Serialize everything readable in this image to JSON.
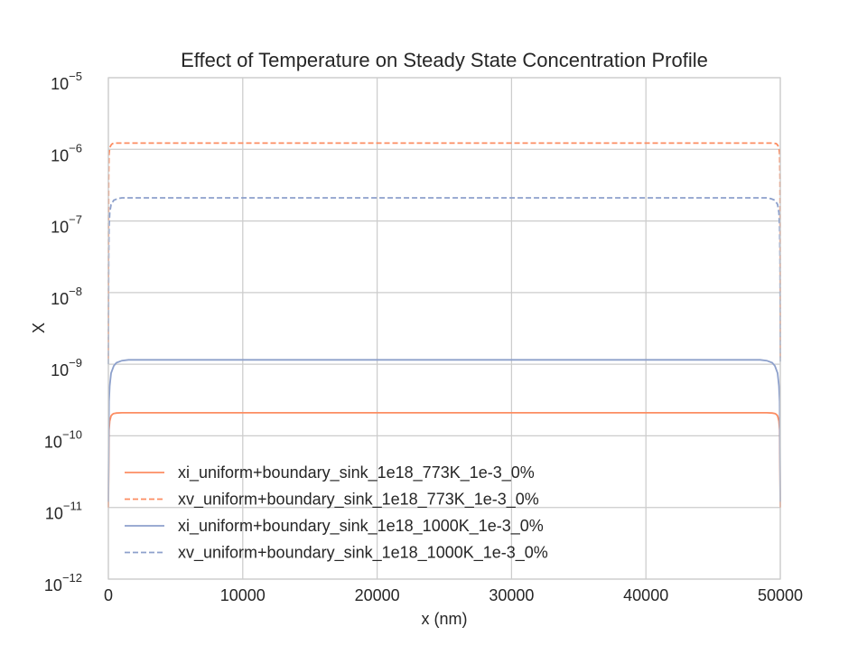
{
  "chart_data": {
    "type": "line",
    "title": "Effect of Temperature on Steady State Concentration Profile",
    "xlabel": "x (nm)",
    "ylabel": "X",
    "xlim": [
      0,
      50000
    ],
    "ylim": [
      1e-12,
      1e-05
    ],
    "yscale": "log",
    "grid": true,
    "legend_position": "lower-left",
    "x_ticks": [
      "0",
      "10000",
      "20000",
      "30000",
      "40000",
      "50000"
    ],
    "y_ticks": [
      {
        "base": "10",
        "exp": "−12"
      },
      {
        "base": "10",
        "exp": "−11"
      },
      {
        "base": "10",
        "exp": "−10"
      },
      {
        "base": "10",
        "exp": "−9"
      },
      {
        "base": "10",
        "exp": "−8"
      },
      {
        "base": "10",
        "exp": "−7"
      },
      {
        "base": "10",
        "exp": "−6"
      },
      {
        "base": "10",
        "exp": "−5"
      }
    ],
    "series": [
      {
        "name": "xi_uniform+boundary_sink_1e18_773K_1e-3_0%",
        "color": "#fc8d62",
        "dash": "solid",
        "x": [
          0,
          50,
          100,
          200,
          300,
          400,
          600,
          1000,
          49000,
          49400,
          49600,
          49700,
          49800,
          49900,
          49950,
          50000
        ],
        "y": [
          1e-11,
          1.2e-10,
          1.6e-10,
          1.9e-10,
          2e-10,
          2.05e-10,
          2.08e-10,
          2.1e-10,
          2.1e-10,
          2.08e-10,
          2.05e-10,
          2e-10,
          1.9e-10,
          1.6e-10,
          1.2e-10,
          1e-11
        ]
      },
      {
        "name": "xv_uniform+boundary_sink_1e18_773K_1e-3_0%",
        "color": "#fc8d62",
        "dash": "dashed",
        "x": [
          0,
          20,
          50,
          100,
          200,
          300,
          500,
          49500,
          49700,
          49800,
          49900,
          49950,
          49980,
          50000
        ],
        "y": [
          1.2e-09,
          4e-07,
          8.5e-07,
          1.05e-06,
          1.15e-06,
          1.2e-06,
          1.22e-06,
          1.22e-06,
          1.2e-06,
          1.15e-06,
          1.05e-06,
          8.5e-07,
          4e-07,
          1.2e-09
        ]
      },
      {
        "name": "xi_uniform+boundary_sink_1e18_1000K_1e-3_0%",
        "color": "#8da0cb",
        "dash": "solid",
        "x": [
          0,
          50,
          100,
          200,
          400,
          600,
          1000,
          1500,
          48500,
          49000,
          49400,
          49600,
          49800,
          49900,
          49950,
          50000
        ],
        "y": [
          1.2e-11,
          3e-10,
          5e-10,
          7.5e-10,
          9.5e-10,
          1.05e-09,
          1.12e-09,
          1.15e-09,
          1.15e-09,
          1.12e-09,
          1.05e-09,
          9.5e-10,
          7.5e-10,
          5e-10,
          3e-10,
          1.2e-11
        ]
      },
      {
        "name": "xv_uniform+boundary_sink_1e18_1000K_1e-3_0%",
        "color": "#8da0cb",
        "dash": "dashed",
        "x": [
          0,
          20,
          50,
          100,
          200,
          400,
          700,
          1000,
          49000,
          49300,
          49600,
          49800,
          49900,
          49950,
          49980,
          50000
        ],
        "y": [
          1e-09,
          3e-08,
          8e-08,
          1.3e-07,
          1.7e-07,
          1.95e-07,
          2.05e-07,
          2.1e-07,
          2.1e-07,
          2.05e-07,
          1.95e-07,
          1.7e-07,
          1.3e-07,
          8e-08,
          3e-08,
          1e-09
        ]
      }
    ]
  }
}
